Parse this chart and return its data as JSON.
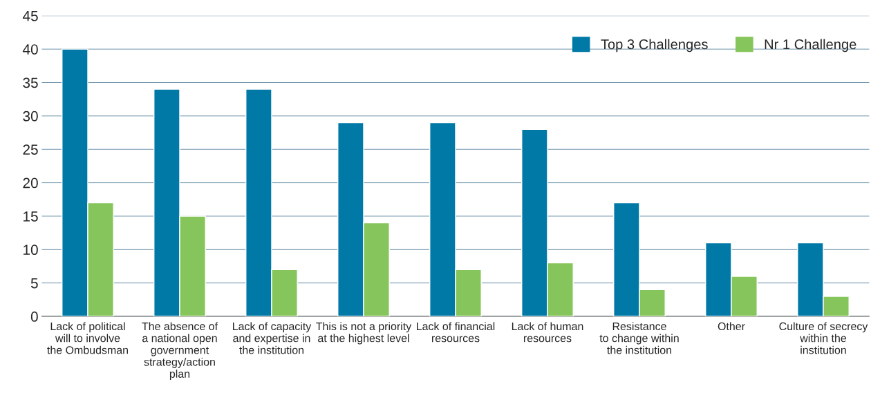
{
  "chart_data": {
    "type": "bar",
    "categories": [
      "Lack of political\nwill to involve\nthe Ombudsman",
      "The absence of\na national open\ngovernment\nstrategy/action\nplan",
      "Lack of capacity\nand expertise in\nthe institution",
      "This is not a priority\nat the highest level",
      "Lack of financial\nresources",
      "Lack of human\nresources",
      "Resistance\nto change within\nthe institution",
      "Other",
      "Culture of secrecy\nwithin the\ninstitution"
    ],
    "series": [
      {
        "name": "Top 3 Challenges",
        "color": "#0079a6",
        "values": [
          40,
          34,
          34,
          29,
          29,
          28,
          17,
          11,
          11
        ]
      },
      {
        "name": "Nr 1 Challenge",
        "color": "#86c55b",
        "values": [
          17,
          15,
          7,
          14,
          7,
          8,
          4,
          6,
          3
        ]
      }
    ],
    "ylim": [
      0,
      45
    ],
    "yticks": [
      0,
      5,
      10,
      15,
      20,
      25,
      30,
      35,
      40,
      45
    ],
    "grid": "y",
    "legend": "top right"
  }
}
